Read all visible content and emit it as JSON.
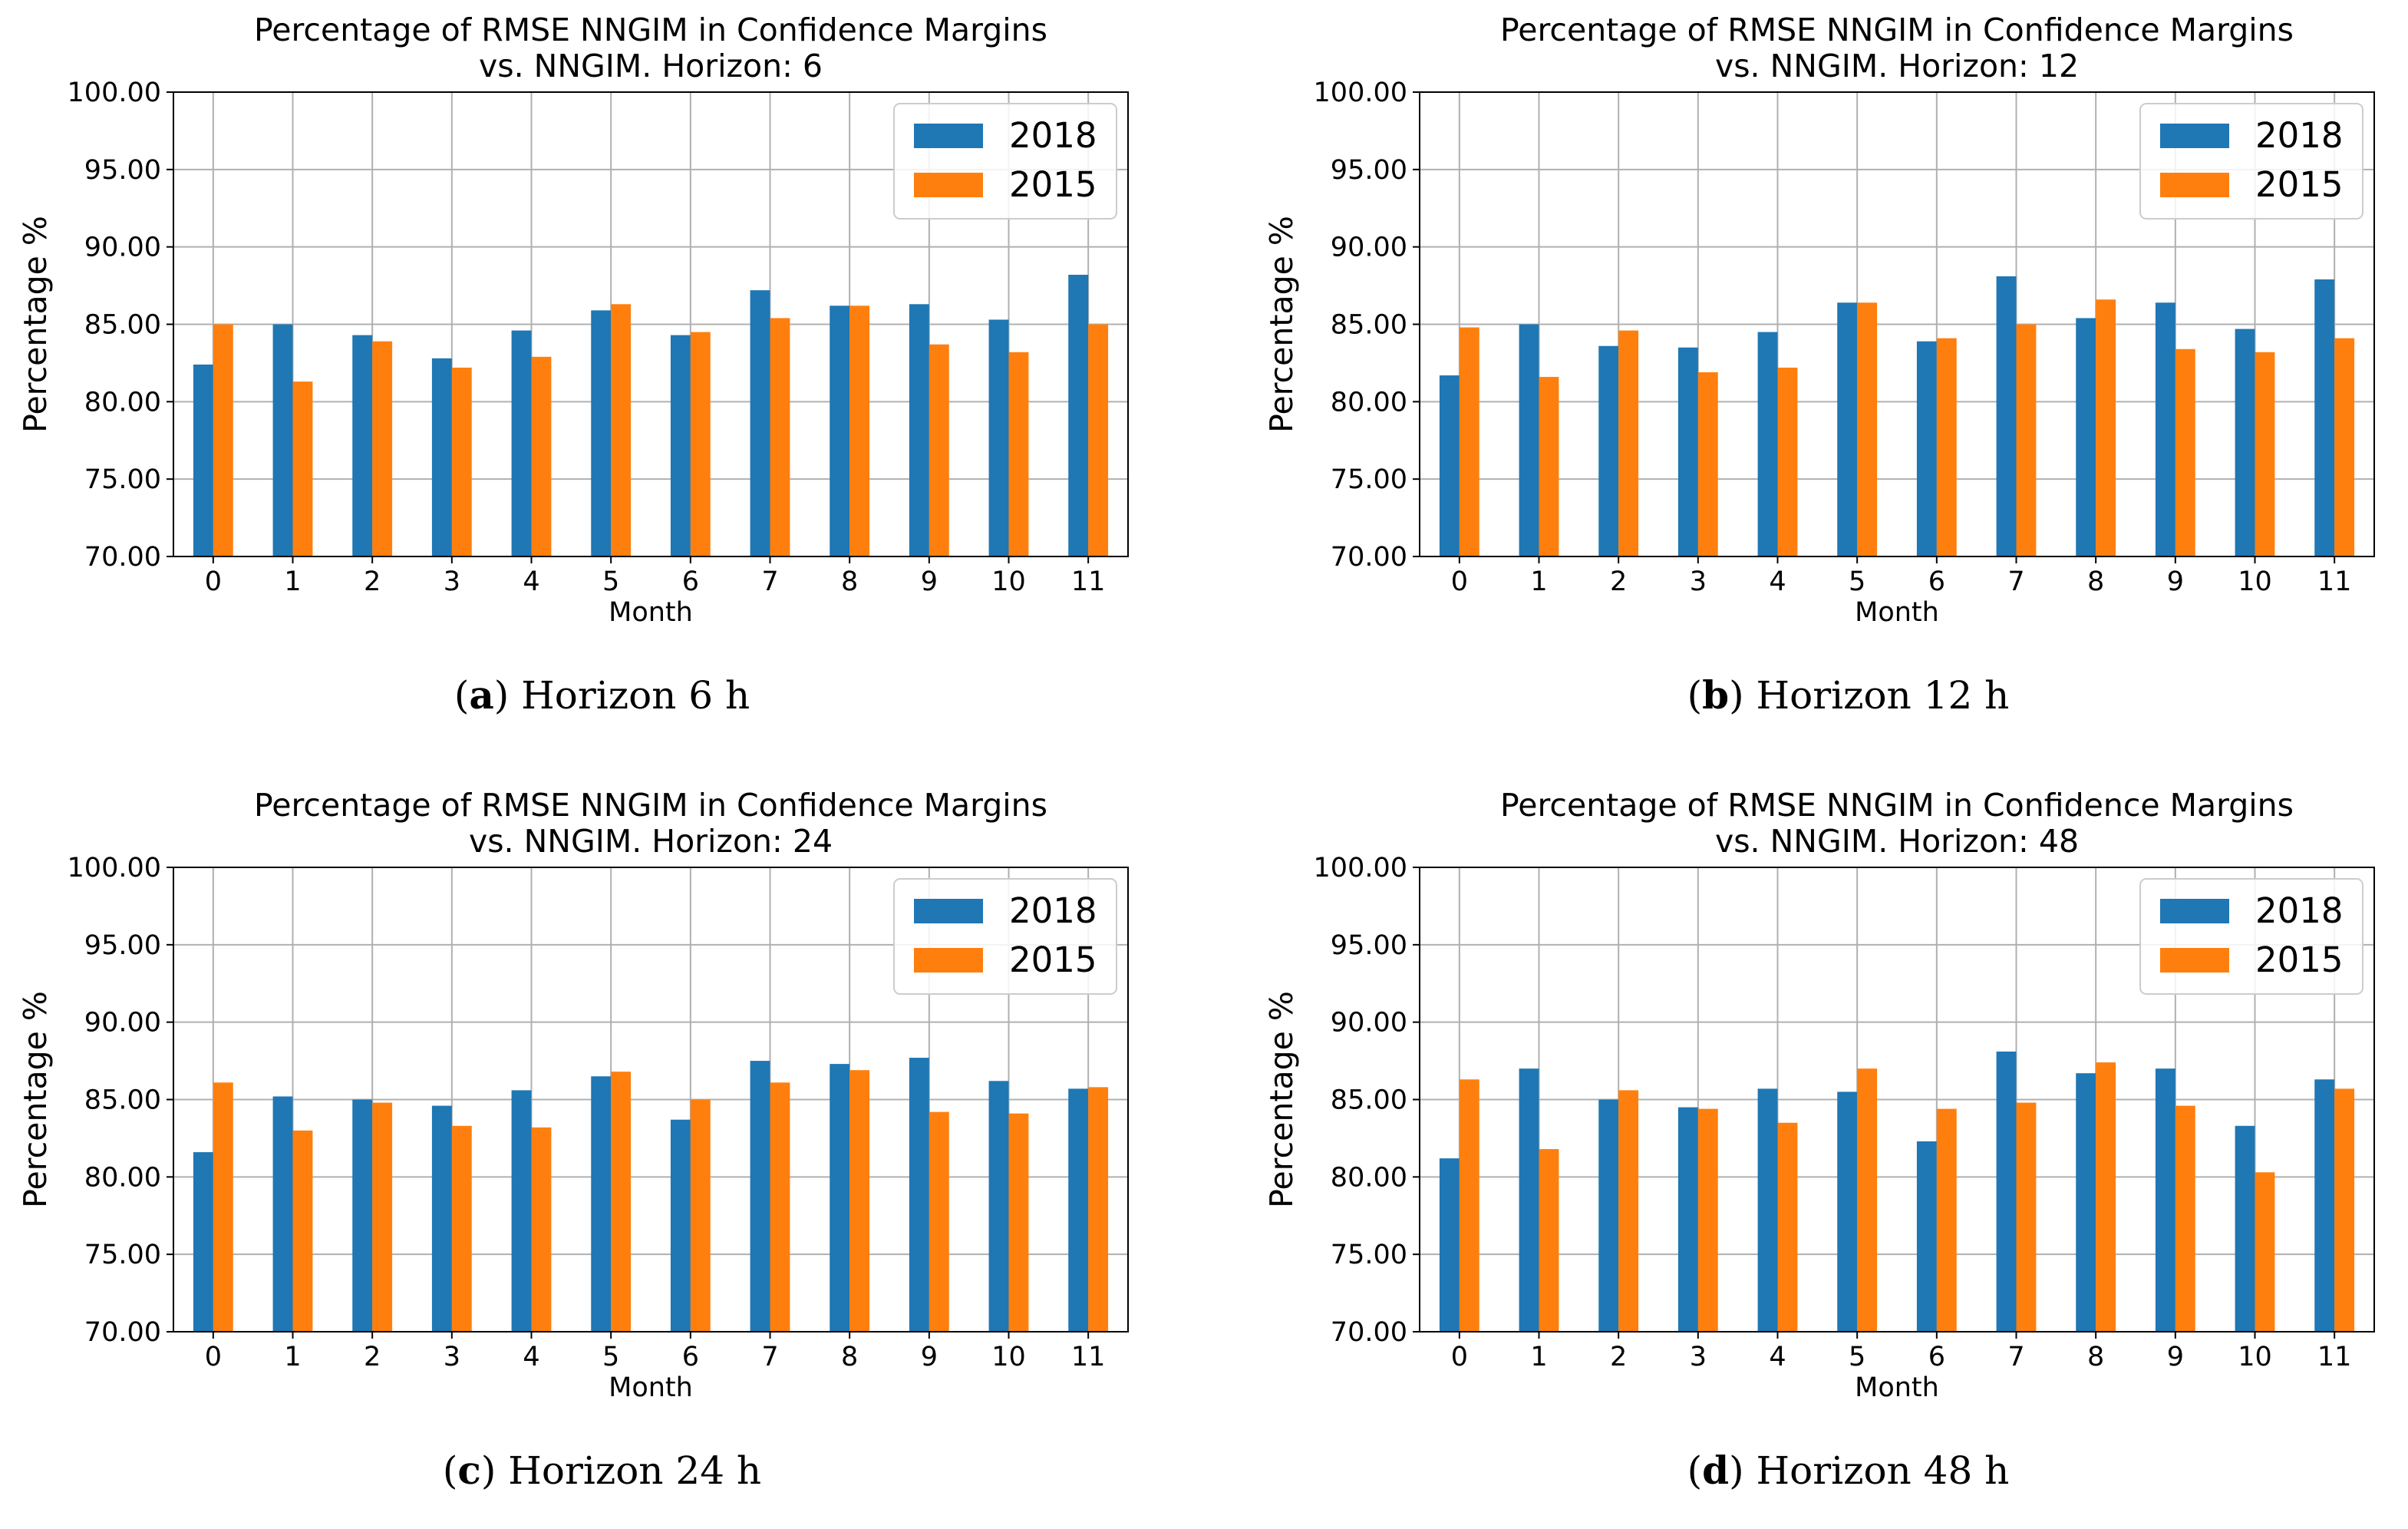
{
  "colors": {
    "s2018": "#1f77b4",
    "s2015": "#ff7f0e",
    "grid": "#b0b0b0",
    "axis": "#000000"
  },
  "panels": [
    {
      "caption": {
        "letter": "a",
        "text": "Horizon 6 h"
      },
      "chart_data": {
        "type": "bar",
        "title": [
          "Percentage of RMSE NNGIM in Confidence  Margins",
          "vs. NNGIM. Horizon: 6"
        ],
        "xlabel": "Month",
        "ylabel": "Percentage %",
        "ylim": [
          70,
          100
        ],
        "yticks": [
          "70.00",
          "75.00",
          "80.00",
          "85.00",
          "90.00",
          "95.00",
          "100.00"
        ],
        "categories": [
          "0",
          "1",
          "2",
          "3",
          "4",
          "5",
          "6",
          "7",
          "8",
          "9",
          "10",
          "11"
        ],
        "legend": "top-right",
        "series": [
          {
            "name": "2018",
            "values": [
              82.4,
              85.0,
              84.3,
              82.8,
              84.6,
              85.9,
              84.3,
              87.2,
              86.2,
              86.3,
              85.3,
              88.2
            ]
          },
          {
            "name": "2015",
            "values": [
              85.0,
              81.3,
              83.9,
              82.2,
              82.9,
              86.3,
              84.5,
              85.4,
              86.2,
              83.7,
              83.2,
              85.0
            ]
          }
        ]
      }
    },
    {
      "caption": {
        "letter": "b",
        "text": "Horizon 12 h"
      },
      "chart_data": {
        "type": "bar",
        "title": [
          "Percentage of RMSE NNGIM in Confidence  Margins",
          "vs. NNGIM. Horizon: 12"
        ],
        "xlabel": "Month",
        "ylabel": "Percentage %",
        "ylim": [
          70,
          100
        ],
        "yticks": [
          "70.00",
          "75.00",
          "80.00",
          "85.00",
          "90.00",
          "95.00",
          "100.00"
        ],
        "categories": [
          "0",
          "1",
          "2",
          "3",
          "4",
          "5",
          "6",
          "7",
          "8",
          "9",
          "10",
          "11"
        ],
        "legend": "top-right",
        "series": [
          {
            "name": "2018",
            "values": [
              81.7,
              85.0,
              83.6,
              83.5,
              84.5,
              86.4,
              83.9,
              88.1,
              85.4,
              86.4,
              84.7,
              87.9
            ]
          },
          {
            "name": "2015",
            "values": [
              84.8,
              81.6,
              84.6,
              81.9,
              82.2,
              86.4,
              84.1,
              85.0,
              86.6,
              83.4,
              83.2,
              84.1
            ]
          }
        ]
      }
    },
    {
      "caption": {
        "letter": "c",
        "text": "Horizon 24 h"
      },
      "chart_data": {
        "type": "bar",
        "title": [
          "Percentage of RMSE NNGIM in Confidence  Margins",
          "vs. NNGIM. Horizon: 24"
        ],
        "xlabel": "Month",
        "ylabel": "Percentage %",
        "ylim": [
          70,
          100
        ],
        "yticks": [
          "70.00",
          "75.00",
          "80.00",
          "85.00",
          "90.00",
          "95.00",
          "100.00"
        ],
        "categories": [
          "0",
          "1",
          "2",
          "3",
          "4",
          "5",
          "6",
          "7",
          "8",
          "9",
          "10",
          "11"
        ],
        "legend": "top-right",
        "series": [
          {
            "name": "2018",
            "values": [
              81.6,
              85.2,
              85.0,
              84.6,
              85.6,
              86.5,
              83.7,
              87.5,
              87.3,
              87.7,
              86.2,
              85.7
            ]
          },
          {
            "name": "2015",
            "values": [
              86.1,
              83.0,
              84.8,
              83.3,
              83.2,
              86.8,
              85.0,
              86.1,
              86.9,
              84.2,
              84.1,
              85.8
            ]
          }
        ]
      }
    },
    {
      "caption": {
        "letter": "d",
        "text": "Horizon 48 h"
      },
      "chart_data": {
        "type": "bar",
        "title": [
          "Percentage of RMSE NNGIM in Confidence  Margins",
          "vs. NNGIM. Horizon: 48"
        ],
        "xlabel": "Month",
        "ylabel": "Percentage %",
        "ylim": [
          70,
          100
        ],
        "yticks": [
          "70.00",
          "75.00",
          "80.00",
          "85.00",
          "90.00",
          "95.00",
          "100.00"
        ],
        "categories": [
          "0",
          "1",
          "2",
          "3",
          "4",
          "5",
          "6",
          "7",
          "8",
          "9",
          "10",
          "11"
        ],
        "legend": "top-right",
        "series": [
          {
            "name": "2018",
            "values": [
              81.2,
              87.0,
              85.0,
              84.5,
              85.7,
              85.5,
              82.3,
              88.1,
              86.7,
              87.0,
              83.3,
              86.3
            ]
          },
          {
            "name": "2015",
            "values": [
              86.3,
              81.8,
              85.6,
              84.4,
              83.5,
              87.0,
              84.4,
              84.8,
              87.4,
              84.6,
              80.3,
              85.7
            ]
          }
        ]
      }
    }
  ]
}
